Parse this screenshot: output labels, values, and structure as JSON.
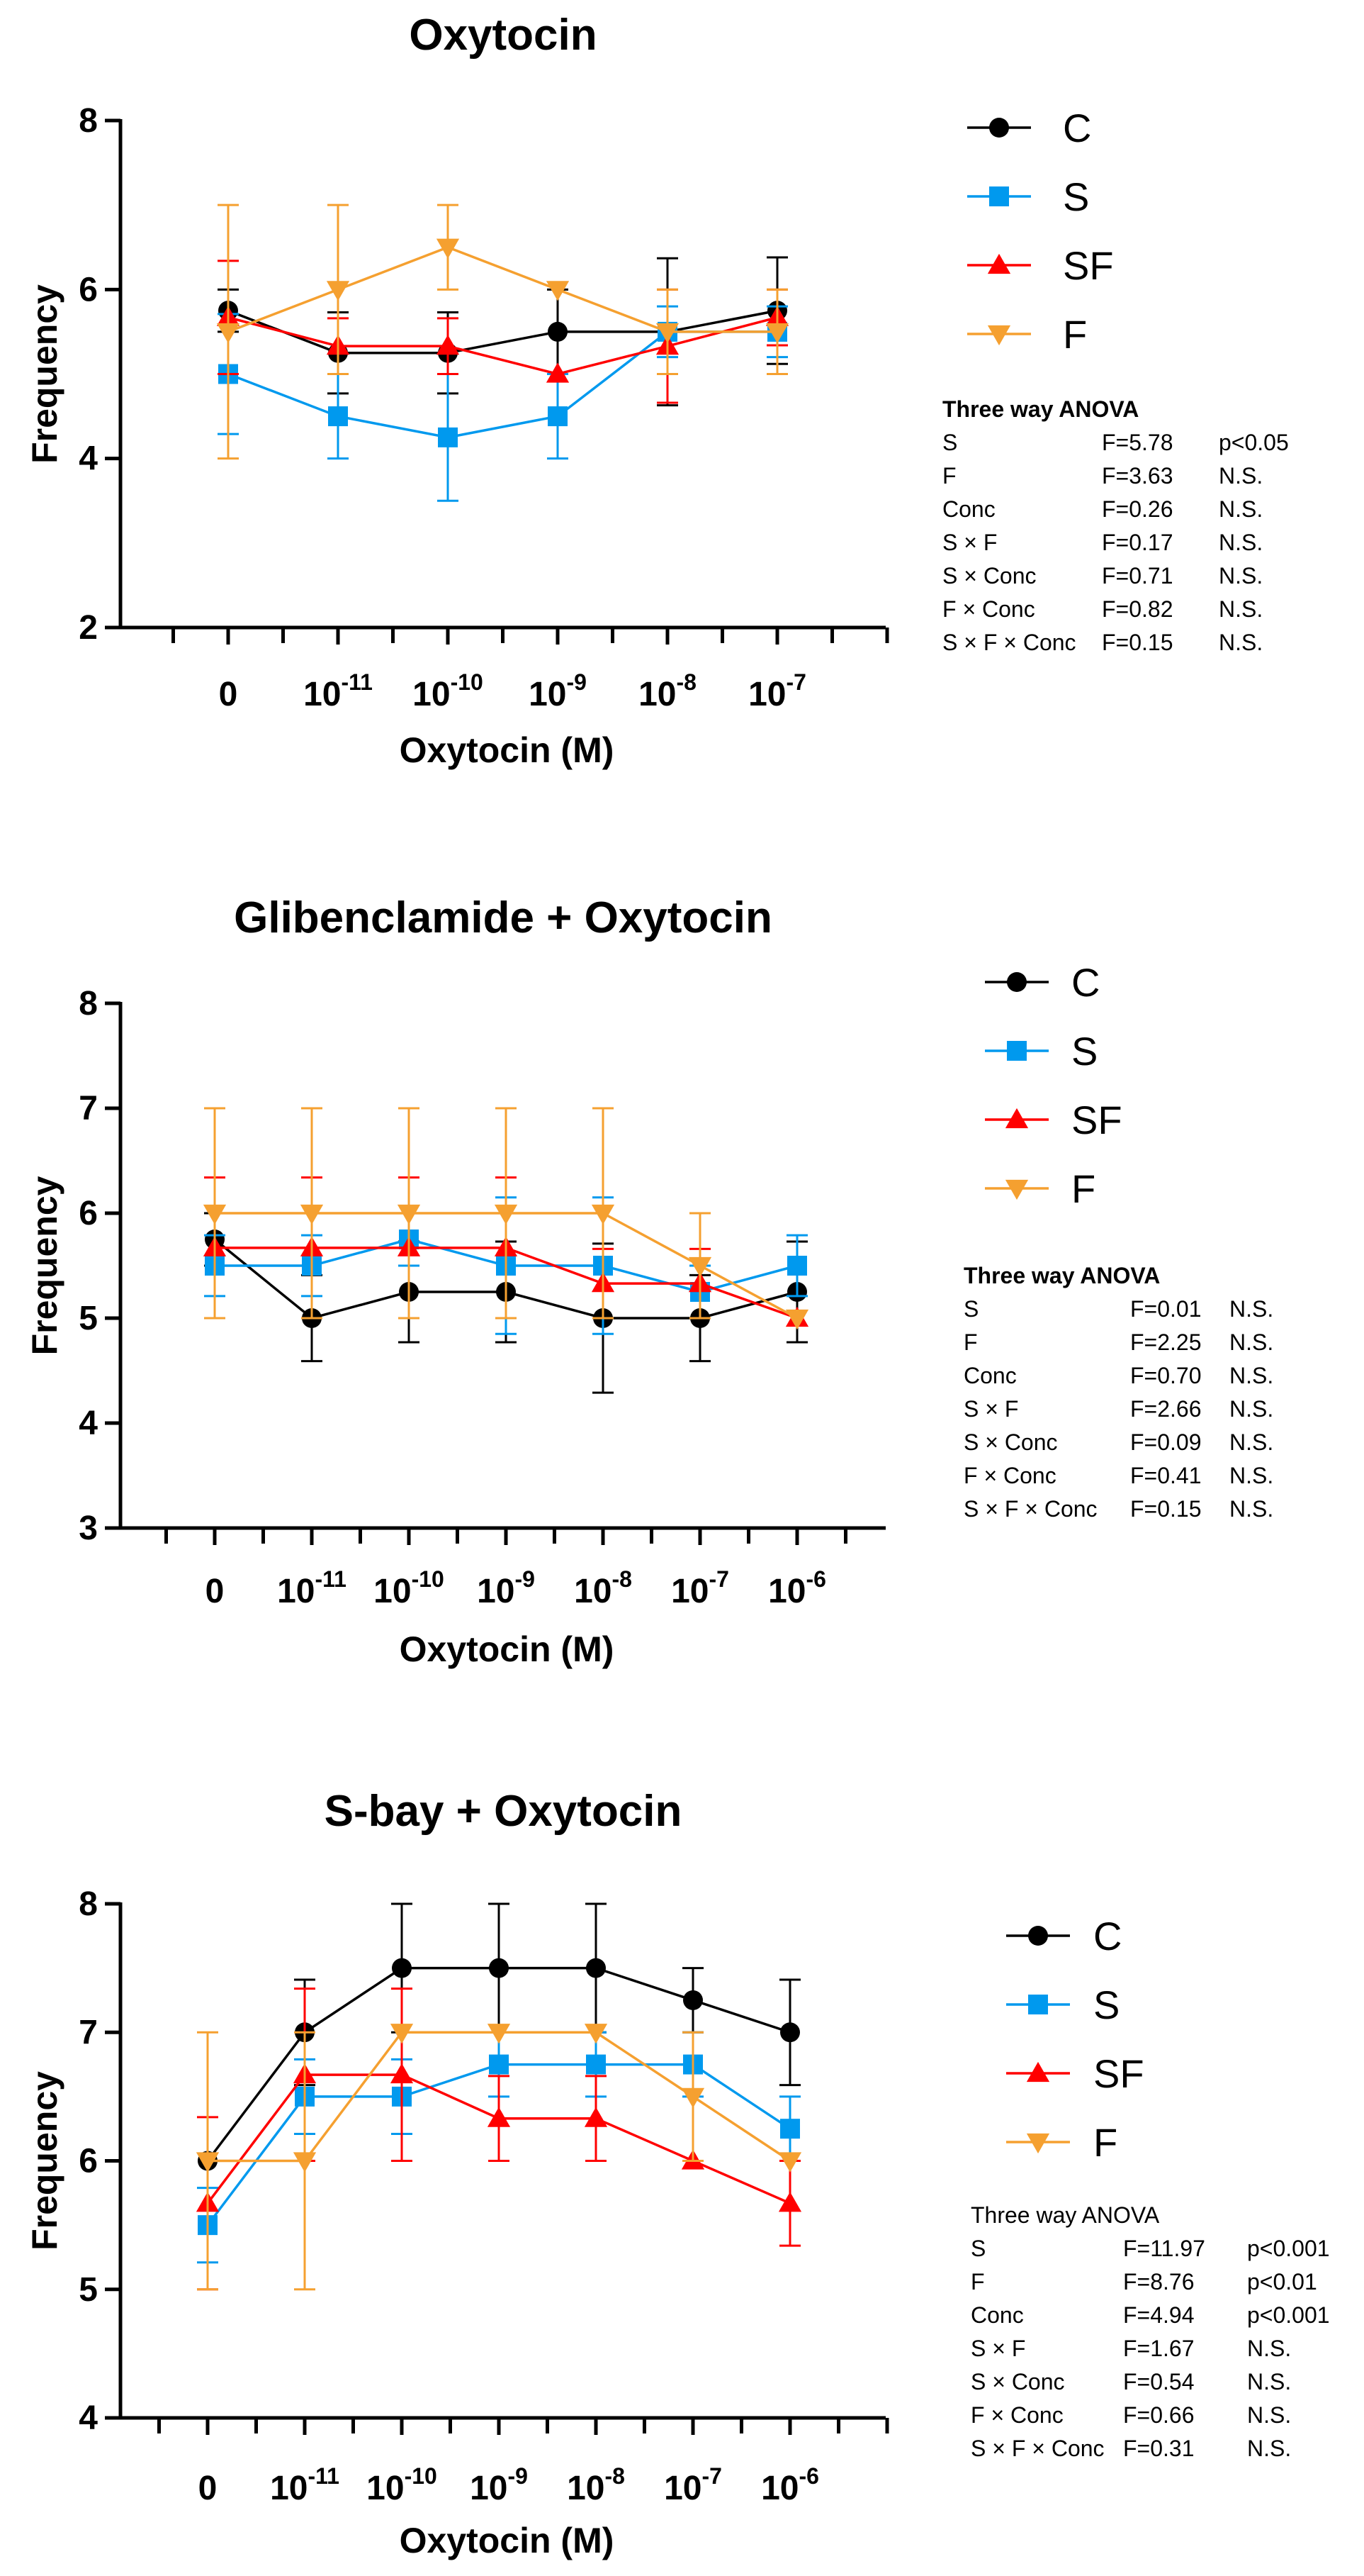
{
  "chart_data": [
    {
      "type": "line",
      "title": "Oxytocin",
      "xlabel": "Oxytocin (M)",
      "ylabel": "Frequency",
      "ylim": [
        2,
        8
      ],
      "yticks": [
        "2",
        "4",
        "6",
        "8"
      ],
      "categories": [
        {
          "base": "0",
          "exp": ""
        },
        {
          "base": "10",
          "exp": "-11"
        },
        {
          "base": "10",
          "exp": "-10"
        },
        {
          "base": "10",
          "exp": "-9"
        },
        {
          "base": "10",
          "exp": "-8"
        },
        {
          "base": "10",
          "exp": "-7"
        }
      ],
      "series": [
        {
          "name": "C",
          "color": "#000000",
          "marker": "circle",
          "values": [
            5.75,
            5.25,
            5.25,
            5.5,
            5.5,
            5.75
          ],
          "errors": [
            0.25,
            0.48,
            0.48,
            0.5,
            0.87,
            0.63
          ]
        },
        {
          "name": "S",
          "color": "#0099ee",
          "marker": "square",
          "values": [
            5.0,
            4.5,
            4.25,
            4.5,
            5.5,
            5.5
          ],
          "errors": [
            0.71,
            0.5,
            0.75,
            0.5,
            0.3,
            0.3
          ]
        },
        {
          "name": "SF",
          "color": "#ff0000",
          "marker": "triangle-up",
          "values": [
            5.67,
            5.33,
            5.33,
            5.0,
            5.33,
            5.67
          ],
          "errors": [
            0.67,
            0.33,
            0.33,
            0.0,
            0.67,
            0.33
          ]
        },
        {
          "name": "F",
          "color": "#f5a030",
          "marker": "triangle-down",
          "values": [
            5.5,
            6.0,
            6.5,
            6.0,
            5.5,
            5.5
          ],
          "errors": [
            1.5,
            1.0,
            0.5,
            0.0,
            0.5,
            0.5
          ]
        }
      ],
      "stats": {
        "heading": "Three way ANOVA",
        "rows": [
          {
            "term": "S",
            "f": "F=5.78",
            "p": "p<0.05"
          },
          {
            "term": "F",
            "f": "F=3.63",
            "p": "N.S."
          },
          {
            "term": "Conc",
            "f": "F=0.26",
            "p": "N.S."
          },
          {
            "term": "S × F",
            "f": "F=0.17",
            "p": "N.S."
          },
          {
            "term": "S × Conc",
            "f": "F=0.71",
            "p": "N.S."
          },
          {
            "term": "F × Conc",
            "f": "F=0.82",
            "p": "N.S."
          },
          {
            "term": "S × F × Conc",
            "f": "F=0.15",
            "p": "N.S."
          }
        ]
      }
    },
    {
      "type": "line",
      "title": "Glibenclamide + Oxytocin",
      "xlabel": "Oxytocin (M)",
      "ylabel": "Frequency",
      "ylim": [
        3,
        8
      ],
      "yticks": [
        "3",
        "4",
        "5",
        "6",
        "7",
        "8"
      ],
      "categories": [
        {
          "base": "0",
          "exp": ""
        },
        {
          "base": "10",
          "exp": "-11"
        },
        {
          "base": "10",
          "exp": "-10"
        },
        {
          "base": "10",
          "exp": "-9"
        },
        {
          "base": "10",
          "exp": "-8"
        },
        {
          "base": "10",
          "exp": "-7"
        },
        {
          "base": "10",
          "exp": "-6"
        }
      ],
      "series": [
        {
          "name": "C",
          "color": "#000000",
          "marker": "circle",
          "values": [
            5.75,
            5.0,
            5.25,
            5.25,
            5.0,
            5.0,
            5.25
          ],
          "errors": [
            0.25,
            0.41,
            0.48,
            0.48,
            0.71,
            0.41,
            0.48
          ]
        },
        {
          "name": "S",
          "color": "#0099ee",
          "marker": "square",
          "values": [
            5.5,
            5.5,
            5.75,
            5.5,
            5.5,
            5.25,
            5.5
          ],
          "errors": [
            0.29,
            0.29,
            0.25,
            0.65,
            0.65,
            0.25,
            0.29
          ]
        },
        {
          "name": "SF",
          "color": "#ff0000",
          "marker": "triangle-up",
          "values": [
            5.67,
            5.67,
            5.67,
            5.67,
            5.33,
            5.33,
            5.0
          ],
          "errors": [
            0.67,
            0.67,
            0.67,
            0.67,
            0.33,
            0.33,
            0.0
          ]
        },
        {
          "name": "F",
          "color": "#f5a030",
          "marker": "triangle-down",
          "values": [
            6.0,
            6.0,
            6.0,
            6.0,
            6.0,
            5.5,
            5.0
          ],
          "errors": [
            1.0,
            1.0,
            1.0,
            1.0,
            1.0,
            0.5,
            0.0
          ]
        }
      ],
      "stats": {
        "heading": "Three way ANOVA",
        "rows": [
          {
            "term": "S",
            "f": "F=0.01",
            "p": "N.S."
          },
          {
            "term": "F",
            "f": "F=2.25",
            "p": "N.S."
          },
          {
            "term": "Conc",
            "f": "F=0.70",
            "p": "N.S."
          },
          {
            "term": "S × F",
            "f": "F=2.66",
            "p": "N.S."
          },
          {
            "term": "S × Conc",
            "f": "F=0.09",
            "p": "N.S."
          },
          {
            "term": "F × Conc",
            "f": "F=0.41",
            "p": "N.S."
          },
          {
            "term": "S × F × Conc",
            "f": "F=0.15",
            "p": "N.S."
          }
        ]
      }
    },
    {
      "type": "line",
      "title": "S-bay + Oxytocin",
      "xlabel": "Oxytocin (M)",
      "ylabel": "Frequency",
      "ylim": [
        4,
        8
      ],
      "yticks": [
        "4",
        "5",
        "6",
        "7",
        "8"
      ],
      "categories": [
        {
          "base": "0",
          "exp": ""
        },
        {
          "base": "10",
          "exp": "-11"
        },
        {
          "base": "10",
          "exp": "-10"
        },
        {
          "base": "10",
          "exp": "-9"
        },
        {
          "base": "10",
          "exp": "-8"
        },
        {
          "base": "10",
          "exp": "-7"
        },
        {
          "base": "10",
          "exp": "-6"
        }
      ],
      "series": [
        {
          "name": "C",
          "color": "#000000",
          "marker": "circle",
          "values": [
            6.0,
            7.0,
            7.5,
            7.5,
            7.5,
            7.25,
            7.0
          ],
          "errors": [
            0.0,
            0.41,
            0.5,
            0.5,
            0.5,
            0.25,
            0.41
          ]
        },
        {
          "name": "S",
          "color": "#0099ee",
          "marker": "square",
          "values": [
            5.5,
            6.5,
            6.5,
            6.75,
            6.75,
            6.75,
            6.25
          ],
          "errors": [
            0.29,
            0.29,
            0.29,
            0.25,
            0.25,
            0.25,
            0.25
          ]
        },
        {
          "name": "SF",
          "color": "#ff0000",
          "marker": "triangle-up",
          "values": [
            5.67,
            6.67,
            6.67,
            6.33,
            6.33,
            6.0,
            5.67
          ],
          "errors": [
            0.67,
            0.67,
            0.67,
            0.33,
            0.33,
            0.0,
            0.33
          ]
        },
        {
          "name": "F",
          "color": "#f5a030",
          "marker": "triangle-down",
          "values": [
            6.0,
            6.0,
            7.0,
            7.0,
            7.0,
            6.5,
            6.0
          ],
          "errors": [
            1.0,
            1.0,
            0.0,
            0.0,
            0.0,
            0.5,
            0.0
          ]
        }
      ],
      "stats": {
        "heading": "Three way ANOVA",
        "rows": [
          {
            "term": "S",
            "f": "F=11.97",
            "p": "p<0.001"
          },
          {
            "term": "F",
            "f": "F=8.76",
            "p": "p<0.01"
          },
          {
            "term": "Conc",
            "f": "F=4.94",
            "p": "p<0.001"
          },
          {
            "term": "S × F",
            "f": "F=1.67",
            "p": "N.S."
          },
          {
            "term": "S × Conc",
            "f": "F=0.54",
            "p": "N.S."
          },
          {
            "term": "F × Conc",
            "f": "F=0.66",
            "p": "N.S."
          },
          {
            "term": "S × F × Conc",
            "f": "F=0.31",
            "p": "N.S."
          }
        ]
      }
    }
  ]
}
